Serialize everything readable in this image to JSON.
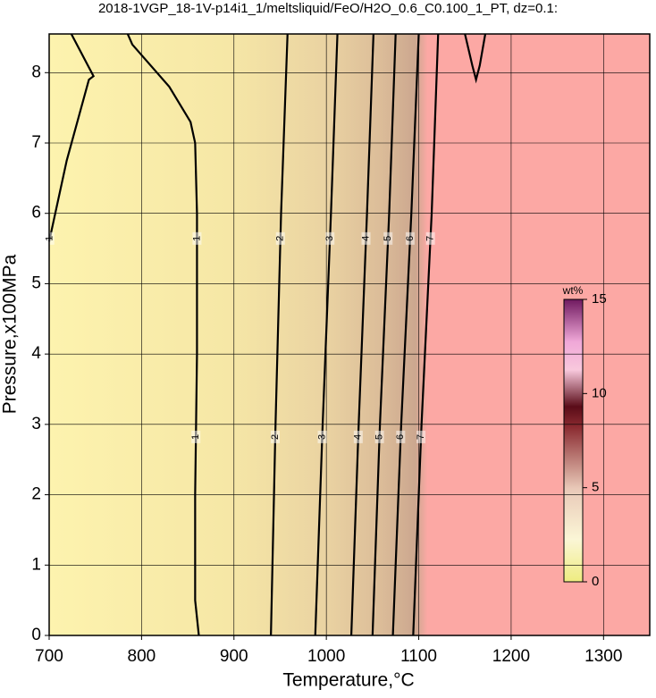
{
  "chart_data": {
    "type": "contour",
    "title": "2018-1VGP_18-1V-p14i1_1/meltsliquid/FeO/H2O_0.6_C0.100_1_PT, dz=0.1:",
    "x_label": "Temperature,°C",
    "y_label": "Pressure,x100MPa",
    "xlim": [
      700,
      1350
    ],
    "ylim": [
      0,
      8.55
    ],
    "xticks": [
      700,
      800,
      900,
      1000,
      1100,
      1200,
      1300
    ],
    "yticks": [
      0,
      1,
      2,
      3,
      4,
      5,
      6,
      7,
      8
    ],
    "grid": true,
    "contours": [
      {
        "level": 1,
        "T": [
          862,
          858,
          858,
          860,
          860,
          858,
          853,
          830,
          790,
          785
        ],
        "P": [
          0,
          0.5,
          2,
          4,
          6,
          7,
          7.3,
          7.8,
          8.4,
          8.55
        ]
      },
      {
        "level": 1,
        "T": [
          700,
          719,
          743,
          748,
          724
        ],
        "P": [
          5.6,
          6.75,
          7.9,
          7.95,
          8.55
        ]
      },
      {
        "level": 1,
        "T": [
          1150,
          1158,
          1162,
          1166,
          1172
        ],
        "P": [
          8.55,
          8.1,
          7.9,
          8.1,
          8.55
        ]
      },
      {
        "level": 2,
        "T": [
          940,
          945,
          951,
          958
        ],
        "P": [
          0,
          3,
          6,
          8.55
        ]
      },
      {
        "level": 3,
        "T": [
          988,
          996,
          1005,
          1012
        ],
        "P": [
          0,
          3,
          6,
          8.55
        ]
      },
      {
        "level": 4,
        "T": [
          1027,
          1035,
          1044,
          1051
        ],
        "P": [
          0,
          3,
          6,
          8.55
        ]
      },
      {
        "level": 5,
        "T": [
          1050,
          1058,
          1068,
          1075
        ],
        "P": [
          0,
          3,
          6,
          8.55
        ]
      },
      {
        "level": 6,
        "T": [
          1072,
          1081,
          1092,
          1100
        ],
        "P": [
          0,
          3,
          6,
          8.55
        ]
      },
      {
        "level": 7,
        "T": [
          1094,
          1103,
          1114,
          1121
        ],
        "P": [
          0,
          3,
          6,
          8.55
        ]
      }
    ],
    "colorbar": {
      "label": "wt%",
      "lim": [
        0,
        15
      ],
      "ticks": [
        0,
        5,
        10,
        15
      ]
    }
  }
}
